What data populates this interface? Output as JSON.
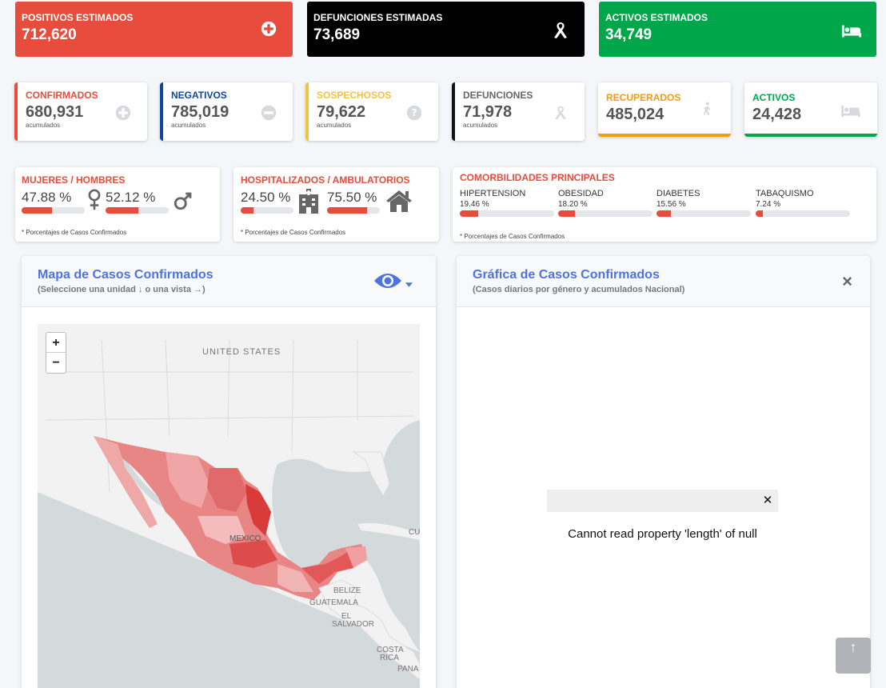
{
  "estimated": [
    {
      "title": "POSITIVOS ESTIMADOS",
      "value": "712,620",
      "color": "#e74c3c",
      "icon": "plus-circle-icon"
    },
    {
      "title": "DEFUNCIONES ESTIMADAS",
      "value": "73,689",
      "color": "#000000",
      "icon": "ribbon-icon"
    },
    {
      "title": "ACTIVOS ESTIMADOS",
      "value": "34,749",
      "color": "#00a74a",
      "icon": "bed-icon"
    }
  ],
  "kpis": [
    {
      "title": "CONFIRMADOS",
      "value": "680,931",
      "sub": "acumulados",
      "color": "#e74c3c"
    },
    {
      "title": "NEGATIVOS",
      "value": "785,019",
      "sub": "acumulados",
      "color": "#0d47a1"
    },
    {
      "title": "SOSPECHOSOS",
      "value": "79,622",
      "sub": "acumulados",
      "color": "#f6c23e"
    },
    {
      "title": "DEFUNCIONES",
      "value": "71,978",
      "sub": "acumulados",
      "color": "#333333"
    },
    {
      "title": "RECUPERADOS",
      "value": "485,024",
      "sub": "",
      "color": "#f39c12"
    },
    {
      "title": "ACTIVOS",
      "value": "24,428",
      "sub": "",
      "color": "#00a74a"
    }
  ],
  "gender": {
    "title": "MUJERES / HOMBRES",
    "women": {
      "label": "47.88 %",
      "value": 47.88
    },
    "men": {
      "label": "52.12 %",
      "value": 52.12
    },
    "note": "* Porcentajes  de Casos Confirmados"
  },
  "hospital": {
    "title": "HOSPITALIZADOS / AMBULATORIOS",
    "hosp": {
      "label": "24.50 %",
      "value": 24.5
    },
    "amb": {
      "label": "75.50 %",
      "value": 75.5
    },
    "note": "* Porcentajes  de Casos Confirmados"
  },
  "comorbid": {
    "title": "COMORBILIDADES PRINCIPALES",
    "items": [
      {
        "name": "HIPERTENSION",
        "label": "19.46 %",
        "value": 19.46
      },
      {
        "name": "OBESIDAD",
        "label": "18.20 %",
        "value": 18.2
      },
      {
        "name": "DIABETES",
        "label": "15.56 %",
        "value": 15.56
      },
      {
        "name": "TABAQUISMO",
        "label": "7.24 %",
        "value": 7.24
      }
    ],
    "note": "* Porcentajes  de Casos Confirmados"
  },
  "map": {
    "title": "Mapa de Casos Confirmados",
    "subtitle": "(Seleccione una unidad ↓ o una vista →)",
    "zoom_in": "+",
    "zoom_out": "−",
    "labels": [
      "UNITED STATES",
      "MEXICO",
      "BELIZE",
      "GUATEMALA",
      "EL",
      "SALVADOR",
      "COSTA",
      "RICA",
      "PANA",
      "CU"
    ]
  },
  "chart": {
    "title": "Gráfica de Casos Confirmados",
    "subtitle": "(Casos diarios por género y acumulados Nacional)",
    "close": "×",
    "error": "Cannot read property 'length' of null",
    "error_close": "✕"
  },
  "scroll_top": "↑"
}
